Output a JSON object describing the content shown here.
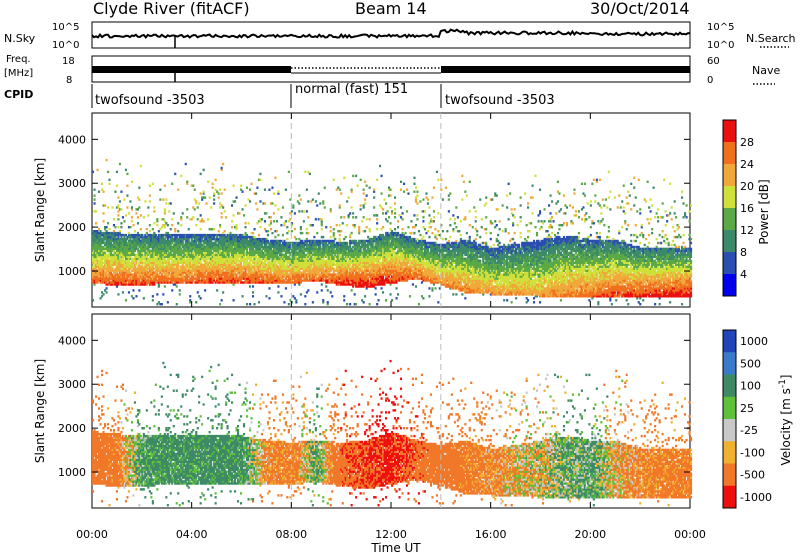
{
  "header": {
    "station": "Clyde River (fitACF)",
    "beam": "Beam 14",
    "date": "30/Oct/2014"
  },
  "left_labels": {
    "nsky": "N.Sky",
    "nsky_top": "10^5",
    "nsky_bot": "10^0",
    "freq": "Freq.",
    "freq_unit": "[MHz]",
    "freq_top": "18",
    "freq_bot": "8",
    "cpid": "CPID"
  },
  "right_labels": {
    "nsearch": "N.Search",
    "nsearch_top": "10^5",
    "nsearch_bot": "10^0",
    "nave": "Nave",
    "nave_top": "60",
    "nave_bot": "0"
  },
  "cpid_segments": [
    {
      "label": "twofsound -3503",
      "start": 0,
      "end": 8
    },
    {
      "label": "normal (fast) 151",
      "start": 8,
      "end": 14
    },
    {
      "label": "twofsound -3503",
      "start": 14,
      "end": 24
    }
  ],
  "power_scale": {
    "label": "Power [dB]",
    "ticks": [
      "4",
      "8",
      "12",
      "16",
      "20",
      "24",
      "28"
    ],
    "colors": [
      "#0000ee",
      "#2a4fb0",
      "#3c8a6a",
      "#5aa846",
      "#cfe03a",
      "#f1a83a",
      "#f07020",
      "#ea1010"
    ]
  },
  "velocity_scale": {
    "label": "Velocity [m s",
    "label_sup": "-1",
    "label_end": "]",
    "ticks": [
      "1000",
      "500",
      "100",
      "25",
      "-25",
      "-100",
      "-500",
      "-1000"
    ],
    "colors": [
      "#2045b8",
      "#3a7ac8",
      "#3e8a66",
      "#5fc03a",
      "#c8c8c8",
      "#f0b030",
      "#f07828",
      "#ee1010"
    ]
  },
  "chart_data": {
    "type": "heatmap",
    "x_label": "Time UT",
    "x_ticks": [
      "00:00",
      "04:00",
      "08:00",
      "12:00",
      "16:00",
      "20:00",
      "00:00"
    ],
    "xlim": [
      0,
      24
    ],
    "y_label": "Slant Range [km]",
    "y_ticks": [
      1000,
      2000,
      3000,
      4000
    ],
    "ylim": [
      180,
      4600
    ],
    "mode_boundaries_hours": [
      8,
      14
    ],
    "panels": [
      {
        "name": "Power [dB]",
        "clim": [
          0,
          30
        ]
      },
      {
        "name": "Velocity [m s-1]",
        "clim": [
          -1000,
          1000
        ]
      }
    ],
    "echo_band": {
      "hours": [
        0,
        1,
        2,
        3,
        4,
        5,
        6,
        7,
        8,
        9,
        10,
        11,
        12,
        13,
        14,
        15,
        16,
        17,
        18,
        19,
        20,
        21,
        22,
        23,
        24
      ],
      "lower_km": [
        700,
        650,
        650,
        700,
        700,
        720,
        700,
        700,
        700,
        750,
        650,
        600,
        700,
        800,
        650,
        480,
        450,
        430,
        400,
        400,
        400,
        400,
        380,
        380,
        400
      ],
      "upper_km": [
        1900,
        1850,
        1800,
        1800,
        1800,
        1800,
        1800,
        1700,
        1650,
        1700,
        1650,
        1700,
        1900,
        1700,
        1600,
        1700,
        1500,
        1600,
        1700,
        1800,
        1700,
        1700,
        1500,
        1500,
        1500
      ],
      "power_peak_db": [
        26,
        27,
        27,
        26,
        26,
        27,
        27,
        26,
        25,
        26,
        28,
        29,
        28,
        26,
        24,
        24,
        22,
        22,
        22,
        24,
        25,
        27,
        28,
        29,
        29
      ],
      "velocity_ms": [
        -300,
        -200,
        150,
        200,
        180,
        200,
        180,
        -150,
        -200,
        100,
        -400,
        -500,
        -600,
        -400,
        -300,
        -200,
        -150,
        -50,
        -30,
        80,
        120,
        -80,
        -150,
        -200,
        -200
      ]
    }
  }
}
